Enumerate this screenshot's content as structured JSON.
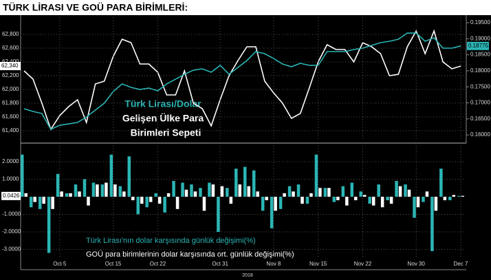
{
  "title": "TÜRK LİRASI VE GOÜ PARA BİRİMLERİ:",
  "chart_data": [
    {
      "type": "line",
      "annotations": [
        "Türk Lirası/Dolar",
        "Gelişen Ülke Para",
        "Birimleri Sepeti"
      ],
      "series": [
        {
          "color": "#ffffff",
          "axis": "y",
          "last_value_label": "62,340",
          "values": [
            62270,
            62150,
            61800,
            61420,
            61620,
            61750,
            61850,
            61520,
            62080,
            62120,
            62480,
            62730,
            62680,
            62370,
            62370,
            62250,
            61920,
            61920,
            62270,
            61800,
            61720,
            61470,
            61850,
            62200,
            62420,
            62620,
            62620,
            62120,
            61950,
            61800,
            61580,
            61650,
            62020,
            62400,
            62650,
            62580,
            62580,
            62400,
            62680,
            62620,
            62520,
            62200,
            62220,
            62620,
            62850,
            62520,
            62850,
            62400,
            62300,
            62340
          ]
        },
        {
          "color": "#2bb5b5",
          "axis": "y2",
          "last_value_label": "0.18775",
          "values": [
            0.16817,
            0.16732,
            0.16667,
            0.16174,
            0.16302,
            0.16345,
            0.16388,
            0.1656,
            0.16775,
            0.16989,
            0.17354,
            0.1759,
            0.17483,
            0.17418,
            0.17461,
            0.17375,
            0.1759,
            0.1774,
            0.17891,
            0.18019,
            0.18062,
            0.17955,
            0.1817,
            0.17891,
            0.18105,
            0.1832,
            0.18599,
            0.18534,
            0.18384,
            0.18212,
            0.18127,
            0.18234,
            0.1817,
            0.1817,
            0.18599,
            0.18599,
            0.18599,
            0.18663,
            0.18706,
            0.18792,
            0.18878,
            0.18921,
            0.18985,
            0.19178,
            0.19178,
            0.18921,
            0.19028,
            0.18706,
            0.18706,
            0.18775
          ]
        }
      ],
      "ylim": [
        61250,
        63050
      ],
      "yticks": [
        {
          "value": 62800,
          "label": "62,800"
        },
        {
          "value": 62600,
          "label": "62,600"
        },
        {
          "value": 62400,
          "label": "62,400"
        },
        {
          "value": 62200,
          "label": "62,200"
        },
        {
          "value": 62000,
          "label": "62,000"
        },
        {
          "value": 61800,
          "label": "61,800"
        },
        {
          "value": 61600,
          "label": "61,600"
        },
        {
          "value": 61400,
          "label": "61,400"
        }
      ],
      "y2lim": [
        0.15809,
        0.19672
      ],
      "y2ticks": [
        {
          "value": 0.195,
          "label": "0.19500"
        },
        {
          "value": 0.19,
          "label": "0.19000"
        },
        {
          "value": 0.185,
          "label": "0.18500"
        },
        {
          "value": 0.18,
          "label": "0.18000"
        },
        {
          "value": 0.175,
          "label": "0.17500"
        },
        {
          "value": 0.17,
          "label": "0.17000"
        },
        {
          "value": 0.165,
          "label": "0.16500"
        },
        {
          "value": 0.16,
          "label": "0.16000"
        }
      ],
      "grid": true
    },
    {
      "type": "bar",
      "categories": [
        null,
        null,
        null,
        null,
        "Oct 5",
        null,
        null,
        null,
        null,
        null,
        "Oct 15",
        null,
        null,
        null,
        null,
        "Oct 22",
        null,
        null,
        null,
        null,
        null,
        null,
        "Oct 31",
        null,
        null,
        null,
        null,
        null,
        "Nov 8",
        null,
        null,
        null,
        null,
        "Nov 15",
        null,
        null,
        null,
        null,
        "Nov 22",
        null,
        null,
        null,
        null,
        null,
        "Nov 30",
        null,
        null,
        null,
        null,
        "Dec 7"
      ],
      "xlabel": "2018",
      "series": [
        {
          "name": "Türk Lirası'nın dolar karşısında günlük değişimi(%)",
          "color": "#2bb5b5",
          "last_value_label": "0.0426",
          "values": [
            2.4,
            -0.6,
            -0.7,
            -3.2,
            1.3,
            0.2,
            0.7,
            1.0,
            0.8,
            0.7,
            2.4,
            0.6,
            2.3,
            -1.0,
            -0.6,
            0.2,
            -0.9,
            0.9,
            0.8,
            0.7,
            0.5,
            0.8,
            -2.0,
            0.5,
            1.6,
            1.7,
            1.5,
            -0.8,
            -1.8,
            -0.7,
            0.6,
            0.7,
            -0.4,
            2.4,
            0.5,
            -0.3,
            0.6,
            0.8,
            0.3,
            -0.4,
            0.7,
            -0.2,
            0.9,
            0.7,
            -1.2,
            -0.3,
            -3.1,
            1.6,
            -0.2,
            0.0426
          ]
        },
        {
          "name": "GOÜ para birimlerinin dolar karşısında ort. günlük değişimi(%)",
          "color": "#ffffff",
          "values": [
            0.2,
            -0.3,
            -0.4,
            -0.7,
            0.3,
            0.2,
            0.3,
            -0.5,
            0.7,
            0.8,
            0.7,
            0.3,
            -0.2,
            -0.4,
            -0.3,
            -0.4,
            0.2,
            -0.7,
            0.4,
            0.3,
            -0.8,
            0.7,
            0.6,
            -0.4,
            0.7,
            0.6,
            0.3,
            -0.2,
            -0.8,
            0.2,
            0.3,
            -0.4,
            0.2,
            0.5,
            0.5,
            -0.2,
            -0.5,
            -0.2,
            0.1,
            -0.5,
            -0.6,
            -0.4,
            0.6,
            0.4,
            -0.6,
            0.3,
            -0.8,
            -0.2,
            0.1,
            0.05
          ]
        }
      ],
      "ylim": [
        -4.08,
        2.9
      ],
      "yticks": [
        {
          "value": 2,
          "label": "2.0000"
        },
        {
          "value": 1,
          "label": "1.0000"
        },
        {
          "value": -1,
          "label": "-1.0000"
        },
        {
          "value": -2,
          "label": "-2.0000"
        },
        {
          "value": -3,
          "label": "-3.0000"
        }
      ],
      "grid": true
    }
  ]
}
